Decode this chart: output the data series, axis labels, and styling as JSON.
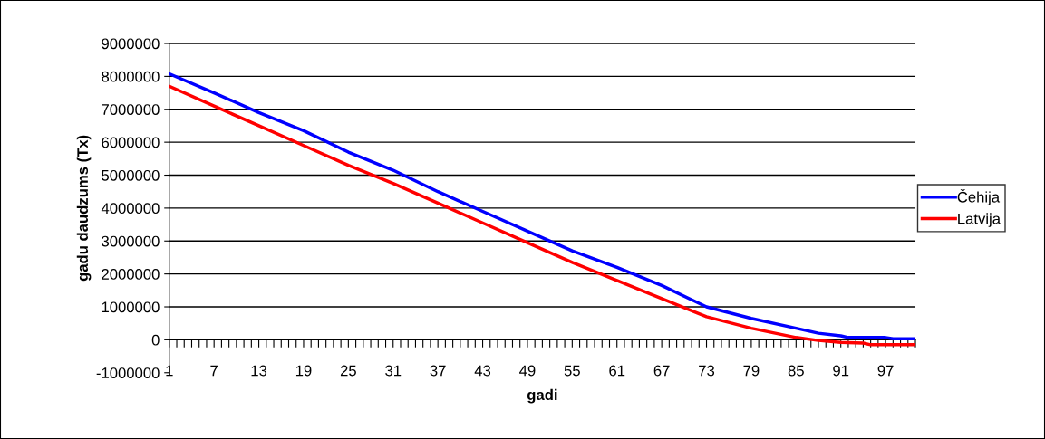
{
  "chart_data": {
    "type": "line",
    "xlabel": "gadi",
    "ylabel": "gadu daudzums (Tx)",
    "xlim": [
      1,
      101
    ],
    "ylim": [
      -1000000,
      9000000
    ],
    "yticks": [
      -1000000,
      0,
      1000000,
      2000000,
      3000000,
      4000000,
      5000000,
      6000000,
      7000000,
      8000000,
      9000000
    ],
    "xticks": [
      1,
      {
        "value": 2,
        "label": null
      },
      {
        "value": 3,
        "label": null
      },
      {
        "value": 4,
        "label": null
      },
      {
        "value": 5,
        "label": null
      },
      {
        "value": 6,
        "label": null
      },
      7,
      {
        "value": 8,
        "label": null
      },
      {
        "value": 9,
        "label": null
      },
      {
        "value": 10,
        "label": null
      },
      {
        "value": 11,
        "label": null
      },
      {
        "value": 12,
        "label": null
      },
      13,
      {
        "value": 14,
        "label": null
      },
      {
        "value": 15,
        "label": null
      },
      {
        "value": 16,
        "label": null
      },
      {
        "value": 17,
        "label": null
      },
      {
        "value": 18,
        "label": null
      },
      19,
      {
        "value": 20,
        "label": null
      },
      {
        "value": 21,
        "label": null
      },
      {
        "value": 22,
        "label": null
      },
      {
        "value": 23,
        "label": null
      },
      {
        "value": 24,
        "label": null
      },
      25,
      {
        "value": 26,
        "label": null
      },
      {
        "value": 27,
        "label": null
      },
      {
        "value": 28,
        "label": null
      },
      {
        "value": 29,
        "label": null
      },
      {
        "value": 30,
        "label": null
      },
      31,
      {
        "value": 32,
        "label": null
      },
      {
        "value": 33,
        "label": null
      },
      {
        "value": 34,
        "label": null
      },
      {
        "value": 35,
        "label": null
      },
      {
        "value": 36,
        "label": null
      },
      37,
      {
        "value": 38,
        "label": null
      },
      {
        "value": 39,
        "label": null
      },
      {
        "value": 40,
        "label": null
      },
      {
        "value": 41,
        "label": null
      },
      {
        "value": 42,
        "label": null
      },
      43,
      {
        "value": 44,
        "label": null
      },
      {
        "value": 45,
        "label": null
      },
      {
        "value": 46,
        "label": null
      },
      {
        "value": 47,
        "label": null
      },
      {
        "value": 48,
        "label": null
      },
      49,
      {
        "value": 50,
        "label": null
      },
      {
        "value": 51,
        "label": null
      },
      {
        "value": 52,
        "label": null
      },
      {
        "value": 53,
        "label": null
      },
      {
        "value": 54,
        "label": null
      },
      55,
      {
        "value": 56,
        "label": null
      },
      {
        "value": 57,
        "label": null
      },
      {
        "value": 58,
        "label": null
      },
      {
        "value": 59,
        "label": null
      },
      {
        "value": 60,
        "label": null
      },
      61,
      {
        "value": 62,
        "label": null
      },
      {
        "value": 63,
        "label": null
      },
      {
        "value": 64,
        "label": null
      },
      {
        "value": 65,
        "label": null
      },
      {
        "value": 66,
        "label": null
      },
      67,
      {
        "value": 68,
        "label": null
      },
      {
        "value": 69,
        "label": null
      },
      {
        "value": 70,
        "label": null
      },
      {
        "value": 71,
        "label": null
      },
      {
        "value": 72,
        "label": null
      },
      73,
      {
        "value": 74,
        "label": null
      },
      {
        "value": 75,
        "label": null
      },
      {
        "value": 76,
        "label": null
      },
      {
        "value": 77,
        "label": null
      },
      {
        "value": 78,
        "label": null
      },
      79,
      {
        "value": 80,
        "label": null
      },
      {
        "value": 81,
        "label": null
      },
      {
        "value": 82,
        "label": null
      },
      {
        "value": 83,
        "label": null
      },
      {
        "value": 84,
        "label": null
      },
      85,
      {
        "value": 86,
        "label": null
      },
      {
        "value": 87,
        "label": null
      },
      {
        "value": 88,
        "label": null
      },
      {
        "value": 89,
        "label": null
      },
      {
        "value": 90,
        "label": null
      },
      91,
      {
        "value": 92,
        "label": null
      },
      {
        "value": 93,
        "label": null
      },
      {
        "value": 94,
        "label": null
      },
      {
        "value": 95,
        "label": null
      },
      {
        "value": 96,
        "label": null
      },
      97,
      {
        "value": 98,
        "label": null
      },
      {
        "value": 99,
        "label": null
      },
      {
        "value": 100,
        "label": null
      },
      {
        "value": 101,
        "label": null
      }
    ],
    "grid": "y",
    "legend": "right",
    "marker": "none",
    "line_style": "solid",
    "series": [
      {
        "name": "Čehija",
        "color": "#0000ff",
        "x": [
          1,
          7,
          13,
          19,
          25,
          31,
          37,
          43,
          49,
          55,
          61,
          67,
          73,
          79,
          85,
          88,
          91,
          92,
          97,
          98,
          101
        ],
        "values": [
          8080000,
          7500000,
          6900000,
          6350000,
          5700000,
          5150000,
          4500000,
          3900000,
          3300000,
          2700000,
          2200000,
          1650000,
          1000000,
          650000,
          350000,
          200000,
          120000,
          70000,
          70000,
          30000,
          30000
        ]
      },
      {
        "name": "Latvija",
        "color": "#ff0000",
        "x": [
          1,
          7,
          13,
          19,
          25,
          31,
          37,
          43,
          49,
          55,
          61,
          67,
          73,
          79,
          85,
          88,
          91,
          94,
          95,
          101
        ],
        "values": [
          7700000,
          7100000,
          6500000,
          5900000,
          5300000,
          4750000,
          4150000,
          3550000,
          2950000,
          2350000,
          1800000,
          1250000,
          700000,
          350000,
          70000,
          -20000,
          -80000,
          -100000,
          -150000,
          -150000
        ]
      }
    ]
  }
}
